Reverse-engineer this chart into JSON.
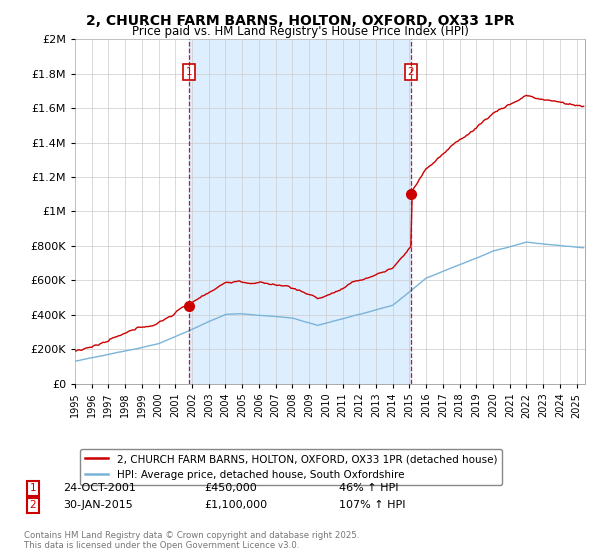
{
  "title": "2, CHURCH FARM BARNS, HOLTON, OXFORD, OX33 1PR",
  "subtitle": "Price paid vs. HM Land Registry's House Price Index (HPI)",
  "legend_line1": "2, CHURCH FARM BARNS, HOLTON, OXFORD, OX33 1PR (detached house)",
  "legend_line2": "HPI: Average price, detached house, South Oxfordshire",
  "annotation1_date": "24-OCT-2001",
  "annotation1_price": "£450,000",
  "annotation1_hpi": "46% ↑ HPI",
  "annotation2_date": "30-JAN-2015",
  "annotation2_price": "£1,100,000",
  "annotation2_hpi": "107% ↑ HPI",
  "footnote": "Contains HM Land Registry data © Crown copyright and database right 2025.\nThis data is licensed under the Open Government Licence v3.0.",
  "hpi_color": "#7ab4d8",
  "price_color": "#cc0000",
  "vline_color": "#cc0000",
  "shade_color": "#ddeeff",
  "background_color": "#ffffff",
  "grid_color": "#cccccc",
  "ylim": [
    0,
    2000000
  ],
  "yticks": [
    0,
    200000,
    400000,
    600000,
    800000,
    1000000,
    1200000,
    1400000,
    1600000,
    1800000,
    2000000
  ],
  "sale1_year": 2001.82,
  "sale1_price": 450000,
  "sale2_year": 2015.08,
  "sale2_price": 1100000,
  "xmin": 1995,
  "xmax": 2025.5
}
